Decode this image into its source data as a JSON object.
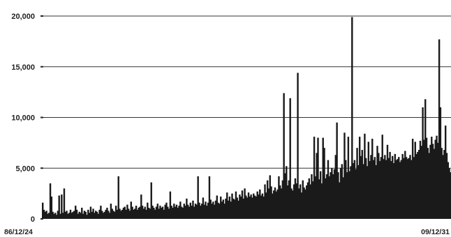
{
  "chart_data": {
    "type": "bar",
    "title": "",
    "xlabel": "",
    "ylabel": "",
    "x_start_label": "86/12/24",
    "x_end_label": "09/12/31",
    "ylim": [
      0,
      20000
    ],
    "yticks": [
      {
        "value": 0,
        "label": "0"
      },
      {
        "value": 5000,
        "label": "5,000"
      },
      {
        "value": 10000,
        "label": "10,000"
      },
      {
        "value": 15000,
        "label": "15,000"
      },
      {
        "value": 20000,
        "label": "20,000"
      }
    ],
    "grid": true,
    "color": "#1a1a1a",
    "series": [
      {
        "values": [
          1600,
          900,
          700,
          800,
          500,
          600,
          3500,
          2200,
          700,
          500,
          600,
          400,
          800,
          2300,
          500,
          2400,
          600,
          3000,
          700,
          800,
          500,
          600,
          900,
          600,
          700,
          800,
          1300,
          900,
          500,
          700,
          600,
          1100,
          500,
          800,
          700,
          400,
          900,
          600,
          1200,
          700,
          1000,
          600,
          800,
          700,
          500,
          900,
          1300,
          800,
          600,
          700,
          900,
          1100,
          800,
          600,
          1500,
          1000,
          800,
          700,
          1300,
          900,
          4200,
          1000,
          800,
          900,
          1100,
          1200,
          900,
          1400,
          1000,
          800,
          1700,
          1200,
          900,
          1000,
          1300,
          900,
          1100,
          1200,
          2400,
          1300,
          1000,
          1200,
          900,
          1600,
          1100,
          1000,
          3600,
          1300,
          1100,
          900,
          1200,
          1500,
          1000,
          1300,
          1100,
          1200,
          900,
          1400,
          1600,
          1200,
          1000,
          2700,
          1300,
          1100,
          1500,
          1200,
          1400,
          1100,
          1300,
          1700,
          1200,
          1100,
          1500,
          1300,
          2000,
          1400,
          1200,
          1600,
          1300,
          1800,
          1200,
          1500,
          1400,
          4200,
          1600,
          1300,
          1500,
          2100,
          1400,
          1700,
          1300,
          1600,
          4200,
          1900,
          1500,
          1700,
          1400,
          1800,
          2300,
          1600,
          1500,
          2200,
          1700,
          1900,
          1500,
          2000,
          2600,
          1800,
          2200,
          1700,
          2500,
          2000,
          1900,
          2700,
          2100,
          1800,
          2400,
          2200,
          2800,
          2000,
          3000,
          2300,
          2100,
          2600,
          2200,
          2400,
          2100,
          2500,
          2300,
          2200,
          2700,
          2400,
          2900,
          2300,
          2500,
          2200,
          3400,
          2600,
          3800,
          3000,
          4300,
          3200,
          2500,
          2800,
          3100,
          2700,
          2900,
          4200,
          3300,
          3000,
          3800,
          12400,
          4500,
          5200,
          3300,
          3800,
          11900,
          3000,
          2800,
          3400,
          4000,
          3500,
          14400,
          3000,
          3400,
          2600,
          3800,
          3100,
          2900,
          3300,
          3600,
          4000,
          3400,
          4400,
          3700,
          8100,
          4200,
          6500,
          8000,
          3900,
          4700,
          3500,
          8000,
          7000,
          4000,
          4400,
          5800,
          4200,
          4600,
          5000,
          4400,
          4900,
          6300,
          9500,
          4600,
          3600,
          5000,
          5400,
          4100,
          8500,
          5800,
          4600,
          8100,
          4700,
          5200,
          19900,
          5500,
          5800,
          4900,
          7000,
          5300,
          8100,
          6200,
          6800,
          5400,
          8400,
          6000,
          5200,
          7600,
          5700,
          6300,
          7900,
          5800,
          6100,
          5300,
          7200,
          6500,
          5700,
          6100,
          8300,
          5900,
          6300,
          5800,
          7300,
          6000,
          6600,
          5700,
          6200,
          5500,
          6400,
          5800,
          5900,
          6100,
          5600,
          5800,
          6400,
          6000,
          6700,
          6100,
          5900,
          6000,
          6300,
          5800,
          7900,
          6100,
          7600,
          6400,
          6600,
          6800,
          7700,
          7200,
          11000,
          7800,
          11800,
          8000,
          7000,
          6500,
          7300,
          8100,
          7400,
          6900,
          7800,
          8200,
          7500,
          17700,
          11000,
          7000,
          6300,
          6800,
          9200,
          6500,
          5600,
          5000,
          4600
        ]
      }
    ]
  }
}
